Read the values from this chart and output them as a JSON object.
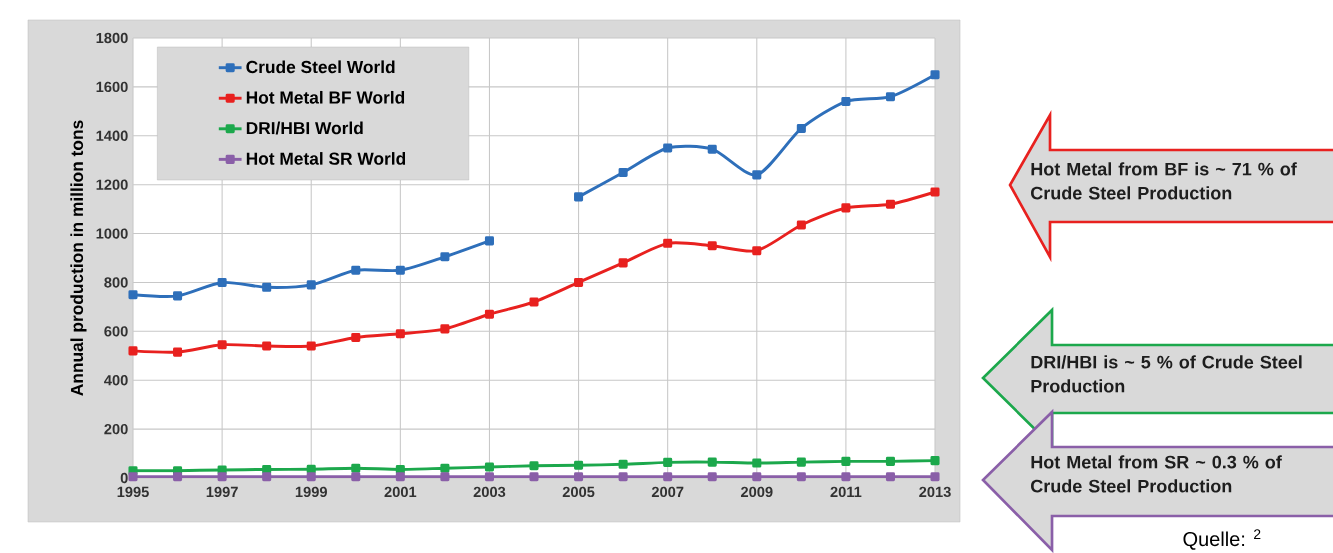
{
  "chart_data": {
    "type": "line",
    "ylabel": "Annual production in million tons",
    "x": [
      1995,
      1996,
      1997,
      1998,
      1999,
      2000,
      2001,
      2002,
      2003,
      2004,
      2005,
      2006,
      2007,
      2008,
      2009,
      2010,
      2011,
      2012,
      2013
    ],
    "series": [
      {
        "name": "Crude Steel World",
        "color": "#2e6fba",
        "values": [
          750,
          745,
          800,
          780,
          790,
          850,
          850,
          905,
          970,
          null,
          1150,
          1250,
          1350,
          1345,
          1240,
          1430,
          1540,
          1560,
          1650
        ]
      },
      {
        "name": "Hot Metal BF World",
        "color": "#e8211f",
        "values": [
          520,
          515,
          545,
          540,
          540,
          575,
          590,
          610,
          670,
          720,
          800,
          880,
          960,
          950,
          930,
          1035,
          1105,
          1120,
          1170
        ]
      },
      {
        "name": "DRI/HBI World",
        "color": "#1ca84c",
        "values": [
          30,
          30,
          33,
          35,
          36,
          40,
          35,
          40,
          45,
          50,
          52,
          56,
          64,
          65,
          61,
          65,
          68,
          68,
          71
        ]
      },
      {
        "name": "Hot Metal SR World",
        "color": "#8a5fa8",
        "values": [
          5,
          5,
          5,
          5,
          5,
          5,
          5,
          5,
          5,
          5,
          5,
          5,
          5,
          5,
          5,
          5,
          5,
          5,
          5
        ]
      }
    ],
    "xlim": [
      1995,
      2013
    ],
    "xticks": [
      1995,
      1997,
      1999,
      2001,
      2003,
      2005,
      2007,
      2009,
      2011,
      2013
    ],
    "ylim": [
      0,
      1800
    ],
    "yticks": [
      0,
      200,
      400,
      600,
      800,
      1000,
      1200,
      1400,
      1600,
      1800
    ],
    "grid": true,
    "legend": "top left",
    "marker": "square",
    "line_style": "solid",
    "annotations": [
      "Hot Metal from BF is ~ 71 % of Crude Steel Production",
      "DRI/HBI is ~ 5 % of Crude Steel Production",
      "Hot Metal from SR ~ 0.3 % of Crude Steel Production",
      "Quelle: $^{2}$"
    ]
  }
}
